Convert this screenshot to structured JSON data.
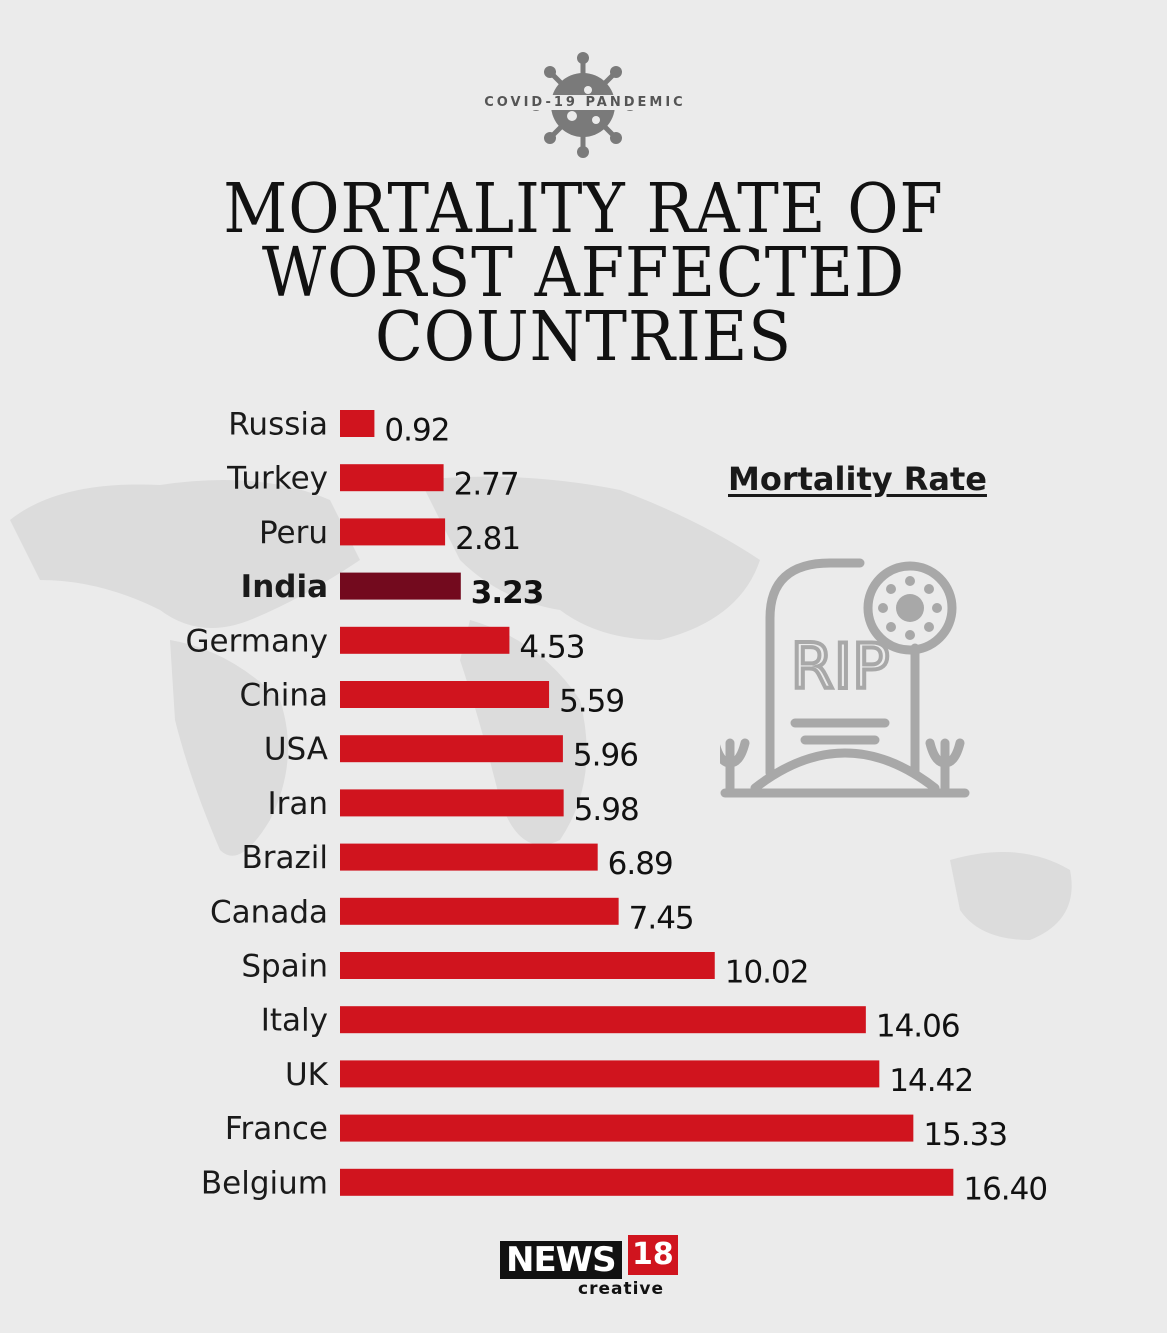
{
  "header": {
    "kicker": "COVID-19 PANDEMIC",
    "title_lines": [
      "MORTALITY RATE OF",
      "WORST AFFECTED",
      "COUNTRIES"
    ]
  },
  "legend": {
    "label": "Mortality Rate"
  },
  "tombstone": {
    "text": "RIP"
  },
  "brand": {
    "name": "NEWS",
    "number": "18",
    "sub": "creative"
  },
  "colors": {
    "bar": "#d0141e",
    "highlight": "#730a1e",
    "background": "#ebebeb",
    "icon": "#a8a8a8"
  },
  "chart_data": {
    "type": "bar",
    "orientation": "horizontal",
    "categories": [
      "Russia",
      "Turkey",
      "Peru",
      "India",
      "Germany",
      "China",
      "USA",
      "Iran",
      "Brazil",
      "Canada",
      "Spain",
      "Italy",
      "UK",
      "France",
      "Belgium"
    ],
    "values": [
      0.92,
      2.77,
      2.81,
      3.23,
      4.53,
      5.59,
      5.96,
      5.98,
      6.89,
      7.45,
      10.02,
      14.06,
      14.42,
      15.33,
      16.4
    ],
    "value_labels": [
      "0.92",
      "2.77",
      "2.81",
      "3.23",
      "4.53",
      "5.59",
      "5.96",
      "5.98",
      "6.89",
      "7.45",
      "10.02",
      "14.06",
      "14.42",
      "15.33",
      "16.40"
    ],
    "highlight": "India",
    "title": "MORTALITY RATE OF WORST AFFECTED COUNTRIES",
    "xlabel": "",
    "ylabel": "",
    "grid": false
  }
}
